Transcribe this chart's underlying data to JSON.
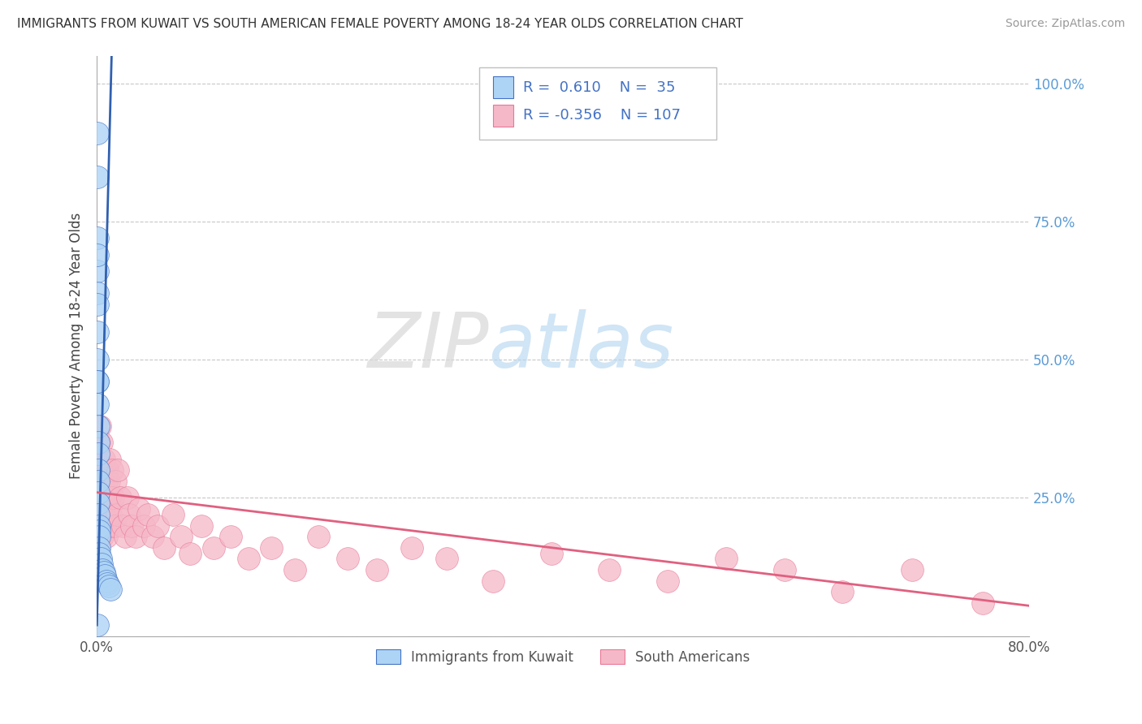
{
  "title": "IMMIGRANTS FROM KUWAIT VS SOUTH AMERICAN FEMALE POVERTY AMONG 18-24 YEAR OLDS CORRELATION CHART",
  "source": "Source: ZipAtlas.com",
  "ylabel": "Female Poverty Among 18-24 Year Olds",
  "watermark_zip": "ZIP",
  "watermark_atlas": "atlas",
  "blue_R": 0.61,
  "blue_N": 35,
  "pink_R": -0.356,
  "pink_N": 107,
  "blue_color": "#aed4f5",
  "pink_color": "#f5b8c8",
  "blue_edge_color": "#4472c4",
  "pink_edge_color": "#e87898",
  "blue_line_color": "#3060b0",
  "pink_line_color": "#e06080",
  "legend_blue_label": "Immigrants from Kuwait",
  "legend_pink_label": "South Americans",
  "blue_scatter_x": [
    0.0002,
    0.0002,
    0.0003,
    0.0003,
    0.0004,
    0.0004,
    0.0005,
    0.0005,
    0.0006,
    0.0006,
    0.0007,
    0.0008,
    0.0009,
    0.001,
    0.001,
    0.001,
    0.0012,
    0.0013,
    0.0015,
    0.0015,
    0.0016,
    0.0017,
    0.002,
    0.002,
    0.0022,
    0.003,
    0.004,
    0.005,
    0.006,
    0.007,
    0.008,
    0.009,
    0.01,
    0.012,
    0.0005
  ],
  "blue_scatter_y": [
    0.91,
    0.83,
    0.72,
    0.66,
    0.69,
    0.62,
    0.6,
    0.55,
    0.5,
    0.46,
    0.46,
    0.42,
    0.38,
    0.35,
    0.33,
    0.3,
    0.28,
    0.26,
    0.24,
    0.22,
    0.2,
    0.19,
    0.18,
    0.16,
    0.15,
    0.14,
    0.13,
    0.12,
    0.115,
    0.11,
    0.1,
    0.095,
    0.09,
    0.085,
    0.02
  ],
  "pink_scatter_x": [
    0.0001,
    0.0001,
    0.0002,
    0.0002,
    0.0002,
    0.0003,
    0.0003,
    0.0004,
    0.0004,
    0.0005,
    0.0005,
    0.0006,
    0.0006,
    0.0007,
    0.0007,
    0.0008,
    0.0008,
    0.0009,
    0.0009,
    0.001,
    0.001,
    0.001,
    0.0011,
    0.0012,
    0.0012,
    0.0013,
    0.0013,
    0.0014,
    0.0015,
    0.0015,
    0.0016,
    0.0017,
    0.0018,
    0.002,
    0.002,
    0.0022,
    0.0023,
    0.0025,
    0.0025,
    0.003,
    0.003,
    0.0033,
    0.0035,
    0.004,
    0.004,
    0.0043,
    0.0045,
    0.005,
    0.005,
    0.0055,
    0.006,
    0.006,
    0.0065,
    0.007,
    0.007,
    0.0075,
    0.008,
    0.008,
    0.009,
    0.009,
    0.01,
    0.01,
    0.011,
    0.011,
    0.012,
    0.013,
    0.014,
    0.015,
    0.016,
    0.017,
    0.018,
    0.02,
    0.022,
    0.024,
    0.026,
    0.028,
    0.03,
    0.033,
    0.036,
    0.04,
    0.044,
    0.048,
    0.052,
    0.058,
    0.065,
    0.072,
    0.08,
    0.09,
    0.1,
    0.115,
    0.13,
    0.15,
    0.17,
    0.19,
    0.215,
    0.24,
    0.27,
    0.3,
    0.34,
    0.39,
    0.44,
    0.49,
    0.54,
    0.59,
    0.64,
    0.7,
    0.76
  ],
  "pink_scatter_y": [
    0.28,
    0.22,
    0.32,
    0.25,
    0.19,
    0.3,
    0.24,
    0.35,
    0.2,
    0.29,
    0.22,
    0.32,
    0.17,
    0.28,
    0.23,
    0.35,
    0.19,
    0.3,
    0.25,
    0.33,
    0.26,
    0.2,
    0.28,
    0.35,
    0.22,
    0.3,
    0.18,
    0.28,
    0.25,
    0.2,
    0.32,
    0.22,
    0.28,
    0.35,
    0.17,
    0.3,
    0.24,
    0.38,
    0.21,
    0.3,
    0.23,
    0.27,
    0.18,
    0.3,
    0.22,
    0.35,
    0.25,
    0.3,
    0.18,
    0.28,
    0.32,
    0.22,
    0.26,
    0.2,
    0.3,
    0.25,
    0.28,
    0.18,
    0.3,
    0.22,
    0.28,
    0.2,
    0.25,
    0.32,
    0.22,
    0.3,
    0.25,
    0.2,
    0.28,
    0.22,
    0.3,
    0.25,
    0.2,
    0.18,
    0.25,
    0.22,
    0.2,
    0.18,
    0.23,
    0.2,
    0.22,
    0.18,
    0.2,
    0.16,
    0.22,
    0.18,
    0.15,
    0.2,
    0.16,
    0.18,
    0.14,
    0.16,
    0.12,
    0.18,
    0.14,
    0.12,
    0.16,
    0.14,
    0.1,
    0.15,
    0.12,
    0.1,
    0.14,
    0.12,
    0.08,
    0.12,
    0.06
  ],
  "xlim": [
    0.0,
    0.8
  ],
  "ylim": [
    0.0,
    1.05
  ],
  "yticks": [
    0.0,
    0.25,
    0.5,
    0.75,
    1.0
  ],
  "ytick_labels_right": [
    "",
    "25.0%",
    "50.0%",
    "75.0%",
    "100.0%"
  ],
  "xtick_labels": [
    "0.0%",
    "",
    "",
    "",
    "80.0%"
  ],
  "bg_color": "#ffffff",
  "grid_color": "#c8c8c8",
  "right_axis_color": "#5b9bd5",
  "label_color_blue": "#4472c4",
  "blue_line_x_start": 0.0,
  "blue_line_x_end": 0.013,
  "pink_line_x_start": 0.0,
  "pink_line_x_end": 0.8
}
